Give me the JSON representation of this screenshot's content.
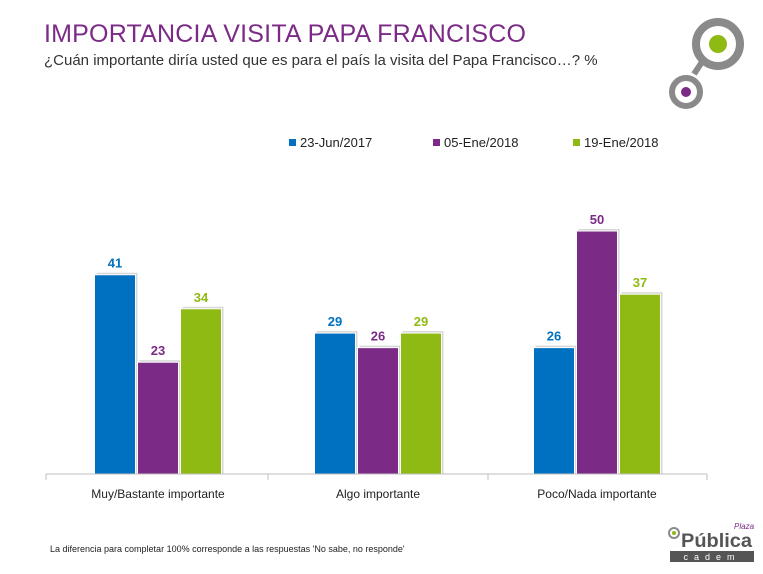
{
  "header": {
    "title": "IMPORTANCIA VISITA PAPA FRANCISCO",
    "subtitle": "¿Cuán importante diría usted que es para el país la visita del Papa Francisco…? %"
  },
  "colors": {
    "title": "#7b2a86",
    "series_1": "#0070c0",
    "series_2": "#7b2a86",
    "series_3": "#8fba14"
  },
  "chart_data": {
    "type": "bar",
    "categories": [
      "Muy/Bastante importante",
      "Algo importante",
      "Poco/Nada importante"
    ],
    "series": [
      {
        "name": "23-Jun/2017",
        "values": [
          41,
          29,
          26
        ],
        "color": "#0070c0"
      },
      {
        "name": "05-Ene/2018",
        "values": [
          23,
          26,
          50
        ],
        "color": "#7b2a86"
      },
      {
        "name": "19-Ene/2018",
        "values": [
          34,
          29,
          37
        ],
        "color": "#8fba14"
      }
    ],
    "ylim": [
      0,
      50
    ],
    "grid": false,
    "legend_position": "top-right",
    "data_labels": true
  },
  "footnote": "La diferencia para completar 100% corresponde a las respuestas 'No sabe, no responde'",
  "logo": {
    "word_top": "Plaza",
    "word_main": "Pública",
    "word_bottom": "cadem"
  }
}
